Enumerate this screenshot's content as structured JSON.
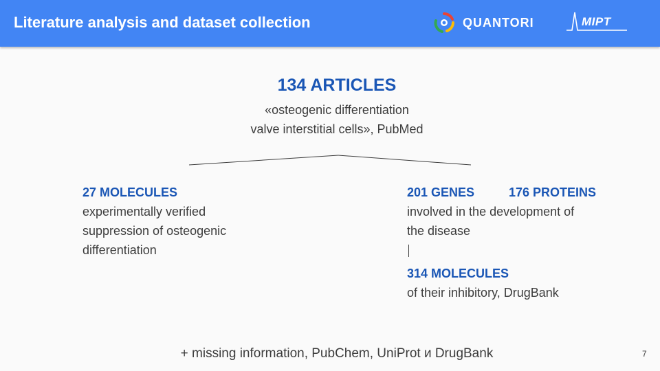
{
  "header": {
    "title": "Literature analysis and dataset collection",
    "quantori_label": "QUANTORI",
    "mipt_label": "MIPT",
    "color": "#4285f4"
  },
  "top": {
    "title": "134 ARTICLES",
    "subtitle_line1": "«osteogenic differentiation",
    "subtitle_line2": "valve interstitial cells», PubMed"
  },
  "left": {
    "heading": "27 MOLECULES",
    "lines": [
      "experimentally verified",
      "suppression of osteogenic",
      "differentiation"
    ]
  },
  "right": {
    "genes": "201 GENES",
    "proteins": "176 PROTEINS",
    "lines": [
      "involved in the development of",
      "the disease"
    ],
    "molecules_heading": "314 MOLECULES",
    "molecules_desc": "of their inhibitory, DrugBank"
  },
  "footer": "+ missing information, PubChem, UniProt и DrugBank",
  "page_number": "7",
  "accent_color": "#1a56b5"
}
